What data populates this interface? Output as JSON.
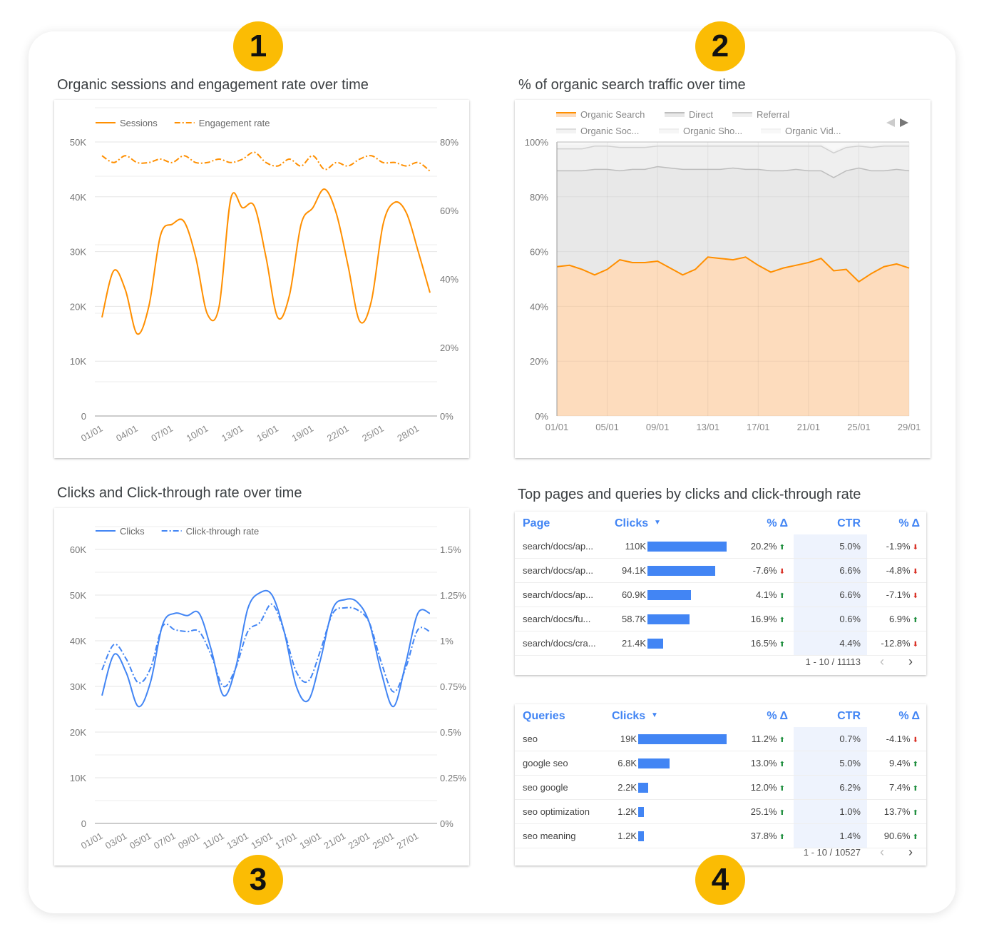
{
  "badges": [
    "1",
    "2",
    "3",
    "4"
  ],
  "chart_data": [
    {
      "type": "line",
      "title": "Organic sessions and engagement rate over time",
      "x": [
        "01/01",
        "02/01",
        "03/01",
        "04/01",
        "05/01",
        "06/01",
        "07/01",
        "08/01",
        "09/01",
        "10/01",
        "11/01",
        "12/01",
        "13/01",
        "14/01",
        "15/01",
        "16/01",
        "17/01",
        "18/01",
        "19/01",
        "20/01",
        "21/01",
        "22/01",
        "23/01",
        "24/01",
        "25/01",
        "26/01",
        "27/01",
        "28/01",
        "29/01"
      ],
      "xticks": [
        "01/01",
        "04/01",
        "07/01",
        "10/01",
        "13/01",
        "16/01",
        "19/01",
        "22/01",
        "25/01",
        "28/01"
      ],
      "yticks_left": [
        "0",
        "10K",
        "20K",
        "30K",
        "40K",
        "50K"
      ],
      "ylim_left": [
        0,
        50000
      ],
      "yticks_right": [
        "0%",
        "20%",
        "40%",
        "60%",
        "80%"
      ],
      "ylim_right": [
        0,
        80
      ],
      "legend": "top-left",
      "grid": true,
      "series": [
        {
          "name": "Sessions",
          "axis": "left",
          "style": "solid",
          "color": "#FF8F00",
          "values": [
            18000,
            26500,
            23000,
            15000,
            20000,
            33000,
            35000,
            35500,
            29000,
            18600,
            20000,
            39700,
            38000,
            38300,
            29000,
            18000,
            22000,
            35000,
            38000,
            41400,
            37000,
            27500,
            17300,
            21000,
            35000,
            39000,
            37000,
            30000,
            22500
          ]
        },
        {
          "name": "Engagement rate",
          "axis": "right",
          "style": "dashed",
          "color": "#FF8F00",
          "values": [
            76,
            74,
            76,
            74,
            74,
            75,
            74,
            76,
            74,
            74,
            75,
            74,
            75,
            77,
            74,
            73,
            75,
            73,
            76,
            72,
            74,
            73,
            75,
            76,
            74,
            74,
            73,
            74,
            71.5
          ]
        }
      ]
    },
    {
      "type": "area",
      "stacked": "percent",
      "title": "% of organic search traffic over time",
      "x": [
        "01/01",
        "02/01",
        "03/01",
        "04/01",
        "05/01",
        "06/01",
        "07/01",
        "08/01",
        "09/01",
        "10/01",
        "11/01",
        "12/01",
        "13/01",
        "14/01",
        "15/01",
        "16/01",
        "17/01",
        "18/01",
        "19/01",
        "20/01",
        "21/01",
        "22/01",
        "23/01",
        "24/01",
        "25/01",
        "26/01",
        "27/01",
        "28/01",
        "29/01"
      ],
      "xticks": [
        "01/01",
        "05/01",
        "09/01",
        "13/01",
        "17/01",
        "21/01",
        "25/01",
        "29/01"
      ],
      "yticks": [
        "0%",
        "20%",
        "40%",
        "60%",
        "80%",
        "100%"
      ],
      "ylim": [
        0,
        100
      ],
      "legend": "top",
      "grid": true,
      "series": [
        {
          "name": "Organic Search",
          "color": "#FF8F00",
          "fill": "#FDDCBD",
          "values": [
            54.5,
            55,
            53.5,
            51.5,
            53.5,
            57,
            56,
            56,
            56.5,
            54,
            51.5,
            53.5,
            58,
            57.5,
            57,
            58,
            55,
            52.5,
            54,
            55,
            56,
            57.5,
            53,
            53.5,
            49,
            52,
            54.5,
            55.5,
            54
          ]
        },
        {
          "name": "Direct",
          "color": "#BDBDBD",
          "fill": "#E8E8E8",
          "values": [
            35,
            34.5,
            36,
            38.5,
            36.5,
            32.5,
            34,
            34,
            34.5,
            36.5,
            38.5,
            36.5,
            32,
            32.5,
            33.5,
            32,
            35,
            37,
            35.5,
            35,
            33.5,
            32,
            34,
            36,
            41.5,
            37.5,
            35,
            34.5,
            35.5
          ]
        },
        {
          "name": "Referral",
          "color": "#D0D0D0",
          "fill": "#EFEFEF",
          "values": [
            8,
            8,
            8,
            8.5,
            8.5,
            8.5,
            8,
            8,
            7.5,
            8,
            8.5,
            8.5,
            8.5,
            8.5,
            8,
            8.5,
            8.5,
            9,
            9,
            8.5,
            9,
            9,
            9,
            8.5,
            8,
            8.5,
            9,
            8.5,
            9
          ]
        },
        {
          "name": "Organic Soc...",
          "color": "#DDDDDD",
          "fill": "#F3F3F3",
          "values": [
            1.5,
            1.5,
            1.5,
            1,
            1,
            1,
            1,
            1,
            0.8,
            0.8,
            0.8,
            0.8,
            0.8,
            0.8,
            0.8,
            0.8,
            0.8,
            0.8,
            0.8,
            0.8,
            0.8,
            0.8,
            0.8,
            0.8,
            0.8,
            0.8,
            0.8,
            0.8,
            0.8
          ]
        },
        {
          "name": "Organic Sho...",
          "color": "#EEEEEE",
          "fill": "#F6F6F6",
          "values": [
            0.3,
            0.3,
            0.3,
            0.3,
            0.3,
            0.3,
            0.3,
            0.3,
            0.3,
            0.3,
            0.3,
            0.3,
            0.3,
            0.3,
            0.3,
            0.3,
            0.3,
            0.3,
            0.3,
            0.3,
            0.3,
            0.3,
            0.3,
            0.3,
            0.3,
            0.3,
            0.3,
            0.3,
            0.3
          ]
        },
        {
          "name": "Organic Vid...",
          "color": "#F2F2F2",
          "fill": "#F8F8F8",
          "values": [
            0.2,
            0.2,
            0.2,
            0.2,
            0.2,
            0.2,
            0.2,
            0.2,
            0.2,
            0.2,
            0.2,
            0.2,
            0.2,
            0.2,
            0.2,
            0.2,
            0.2,
            0.2,
            0.2,
            0.2,
            0.2,
            0.2,
            0.2,
            0.2,
            0.2,
            0.2,
            0.2,
            0.2,
            0.2
          ]
        }
      ]
    },
    {
      "type": "line",
      "title": "Clicks and Click-through rate over time",
      "x": [
        "01/01",
        "02/01",
        "03/01",
        "04/01",
        "05/01",
        "06/01",
        "07/01",
        "08/01",
        "09/01",
        "10/01",
        "11/01",
        "12/01",
        "13/01",
        "14/01",
        "15/01",
        "16/01",
        "17/01",
        "18/01",
        "19/01",
        "20/01",
        "21/01",
        "22/01",
        "23/01",
        "24/01",
        "25/01",
        "26/01",
        "27/01",
        "28/01"
      ],
      "xticks": [
        "01/01",
        "03/01",
        "05/01",
        "07/01",
        "09/01",
        "11/01",
        "13/01",
        "15/01",
        "17/01",
        "19/01",
        "21/01",
        "23/01",
        "25/01",
        "27/01"
      ],
      "yticks_left": [
        "0",
        "10K",
        "20K",
        "30K",
        "40K",
        "50K",
        "60K"
      ],
      "ylim_left": [
        0,
        60000
      ],
      "yticks_right": [
        "0%",
        "0.25%",
        "0.5%",
        "0.75%",
        "1%",
        "1.25%",
        "1.5%"
      ],
      "ylim_right": [
        0,
        1.5
      ],
      "legend": "top-left",
      "grid": true,
      "series": [
        {
          "name": "Clicks",
          "axis": "left",
          "style": "solid",
          "color": "#4285F4",
          "values": [
            28000,
            37000,
            33000,
            25600,
            31000,
            43600,
            46000,
            45500,
            46000,
            38000,
            28000,
            34000,
            47000,
            50500,
            50000,
            42000,
            30000,
            27000,
            36000,
            47000,
            49000,
            48500,
            44000,
            33000,
            25600,
            35000,
            46000,
            46000
          ]
        },
        {
          "name": "Click-through rate",
          "axis": "right",
          "style": "dashed",
          "color": "#4285F4",
          "values": [
            0.84,
            0.98,
            0.9,
            0.77,
            0.85,
            1.08,
            1.06,
            1.05,
            1.05,
            0.92,
            0.75,
            0.85,
            1.05,
            1.1,
            1.2,
            1.05,
            0.83,
            0.78,
            0.95,
            1.15,
            1.18,
            1.17,
            1.1,
            0.88,
            0.72,
            0.85,
            1.06,
            1.05
          ]
        }
      ]
    },
    {
      "type": "table",
      "title": "Top pages and queries by clicks and click-through rate",
      "tables": [
        {
          "columns": [
            "Page",
            "Clicks",
            "% Δ",
            "CTR",
            "% Δ"
          ],
          "sort_icon": "sort-desc-icon",
          "pagination": "1 - 10 / 11113",
          "rows": [
            {
              "label": "search/docs/ap...",
              "clicks": "110K",
              "clicks_value": 110000,
              "delta": "20.2%",
              "delta_dir": "up",
              "ctr": "5.0%",
              "ctr_delta": "-1.9%",
              "ctr_dir": "down"
            },
            {
              "label": "search/docs/ap...",
              "clicks": "94.1K",
              "clicks_value": 94100,
              "delta": "-7.6%",
              "delta_dir": "down",
              "ctr": "6.6%",
              "ctr_delta": "-4.8%",
              "ctr_dir": "down"
            },
            {
              "label": "search/docs/ap...",
              "clicks": "60.9K",
              "clicks_value": 60900,
              "delta": "4.1%",
              "delta_dir": "up",
              "ctr": "6.6%",
              "ctr_delta": "-7.1%",
              "ctr_dir": "down"
            },
            {
              "label": "search/docs/fu...",
              "clicks": "58.7K",
              "clicks_value": 58700,
              "delta": "16.9%",
              "delta_dir": "up",
              "ctr": "0.6%",
              "ctr_delta": "6.9%",
              "ctr_dir": "up"
            },
            {
              "label": "search/docs/cra...",
              "clicks": "21.4K",
              "clicks_value": 21400,
              "delta": "16.5%",
              "delta_dir": "up",
              "ctr": "4.4%",
              "ctr_delta": "-12.8%",
              "ctr_dir": "down"
            }
          ]
        },
        {
          "columns": [
            "Queries",
            "Clicks",
            "% Δ",
            "CTR",
            "% Δ"
          ],
          "sort_icon": "sort-desc-icon",
          "pagination": "1 - 10 / 10527",
          "rows": [
            {
              "label": "seo",
              "clicks": "19K",
              "clicks_value": 19000,
              "delta": "11.2%",
              "delta_dir": "up",
              "ctr": "0.7%",
              "ctr_delta": "-4.1%",
              "ctr_dir": "down"
            },
            {
              "label": "google seo",
              "clicks": "6.8K",
              "clicks_value": 6800,
              "delta": "13.0%",
              "delta_dir": "up",
              "ctr": "5.0%",
              "ctr_delta": "9.4%",
              "ctr_dir": "up"
            },
            {
              "label": "seo google",
              "clicks": "2.2K",
              "clicks_value": 2200,
              "delta": "12.0%",
              "delta_dir": "up",
              "ctr": "6.2%",
              "ctr_delta": "7.4%",
              "ctr_dir": "up"
            },
            {
              "label": "seo optimization",
              "clicks": "1.2K",
              "clicks_value": 1200,
              "delta": "25.1%",
              "delta_dir": "up",
              "ctr": "1.0%",
              "ctr_delta": "13.7%",
              "ctr_dir": "up"
            },
            {
              "label": "seo meaning",
              "clicks": "1.2K",
              "clicks_value": 1200,
              "delta": "37.8%",
              "delta_dir": "up",
              "ctr": "1.4%",
              "ctr_delta": "90.6%",
              "ctr_dir": "up"
            }
          ]
        }
      ]
    }
  ]
}
